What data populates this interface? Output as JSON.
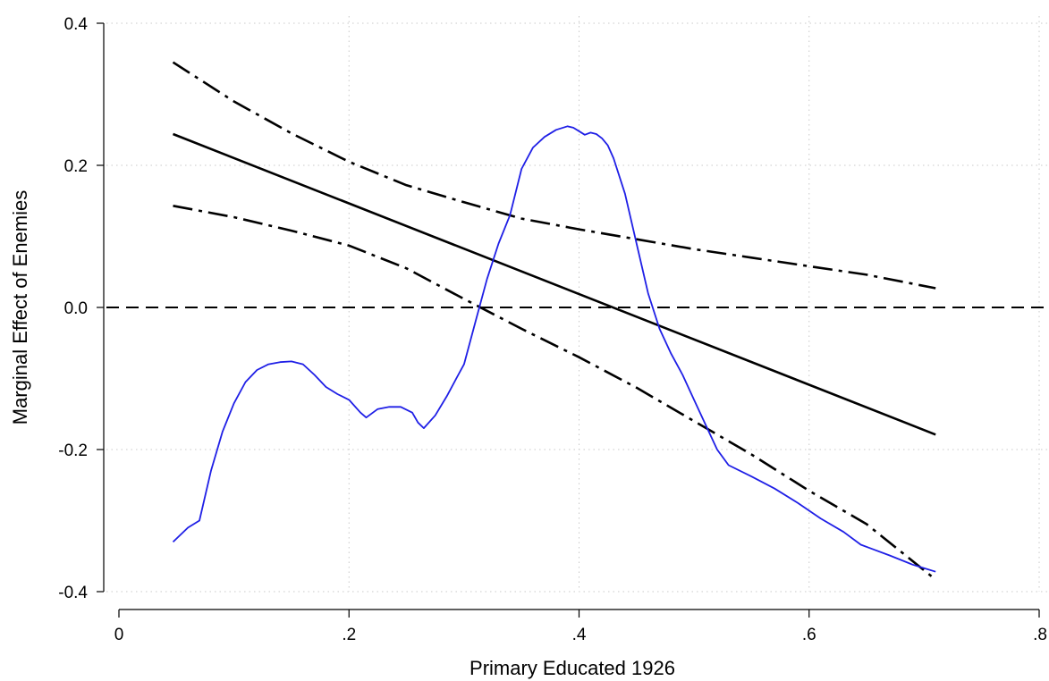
{
  "chart_data": {
    "type": "line",
    "title": "",
    "xlabel": "Primary Educated 1926",
    "ylabel": "Marginal Effect of Enemies",
    "xlim": [
      0,
      0.8
    ],
    "ylim": [
      -0.4,
      0.4
    ],
    "xticks": [
      0,
      0.2,
      0.4,
      0.6,
      0.8
    ],
    "xtick_labels": [
      "0",
      ".2",
      ".4",
      ".6",
      ".8"
    ],
    "yticks": [
      -0.4,
      -0.2,
      0.0,
      0.2,
      0.4
    ],
    "ytick_labels": [
      "-0.4",
      "-0.2",
      "0.0",
      "0.2",
      "0.4"
    ],
    "grid": true,
    "legend": "none",
    "reference_line": {
      "y": 0,
      "style": "dashed",
      "color": "#000000"
    },
    "series": [
      {
        "key": "marginal-effect",
        "style": "solid",
        "color": "#000000",
        "x": [
          0.047,
          0.71
        ],
        "y": [
          0.244,
          -0.179
        ]
      },
      {
        "key": "upper-bound",
        "style": "dashdot",
        "color": "#000000",
        "x": [
          0.047,
          0.1,
          0.15,
          0.2,
          0.25,
          0.3,
          0.35,
          0.4,
          0.45,
          0.5,
          0.55,
          0.6,
          0.65,
          0.71
        ],
        "y": [
          0.345,
          0.29,
          0.245,
          0.205,
          0.172,
          0.148,
          0.125,
          0.11,
          0.096,
          0.082,
          0.07,
          0.058,
          0.046,
          0.027
        ]
      },
      {
        "key": "lower-bound",
        "style": "dashdot",
        "color": "#000000",
        "x": [
          0.047,
          0.1,
          0.15,
          0.2,
          0.25,
          0.3,
          0.35,
          0.4,
          0.45,
          0.5,
          0.55,
          0.6,
          0.65,
          0.71
        ],
        "y": [
          0.143,
          0.127,
          0.108,
          0.087,
          0.055,
          0.012,
          -0.03,
          -0.07,
          -0.113,
          -0.16,
          -0.207,
          -0.258,
          -0.305,
          -0.383
        ]
      },
      {
        "key": "distribution-curve",
        "style": "solid",
        "color": "#1f1fe6",
        "x": [
          0.047,
          0.06,
          0.07,
          0.08,
          0.09,
          0.1,
          0.11,
          0.12,
          0.13,
          0.14,
          0.15,
          0.16,
          0.17,
          0.18,
          0.19,
          0.2,
          0.21,
          0.215,
          0.225,
          0.235,
          0.245,
          0.255,
          0.26,
          0.265,
          0.275,
          0.285,
          0.295,
          0.3,
          0.31,
          0.32,
          0.33,
          0.34,
          0.35,
          0.36,
          0.37,
          0.38,
          0.39,
          0.395,
          0.4,
          0.405,
          0.41,
          0.415,
          0.42,
          0.425,
          0.43,
          0.44,
          0.45,
          0.46,
          0.47,
          0.48,
          0.49,
          0.5,
          0.51,
          0.52,
          0.53,
          0.55,
          0.57,
          0.59,
          0.61,
          0.63,
          0.645,
          0.655,
          0.67,
          0.69,
          0.71
        ],
        "y": [
          -0.33,
          -0.31,
          -0.3,
          -0.23,
          -0.175,
          -0.135,
          -0.105,
          -0.088,
          -0.08,
          -0.077,
          -0.076,
          -0.08,
          -0.095,
          -0.112,
          -0.122,
          -0.13,
          -0.148,
          -0.155,
          -0.143,
          -0.14,
          -0.14,
          -0.148,
          -0.162,
          -0.17,
          -0.152,
          -0.125,
          -0.095,
          -0.08,
          -0.02,
          0.04,
          0.09,
          0.13,
          0.195,
          0.225,
          0.24,
          0.25,
          0.255,
          0.253,
          0.248,
          0.243,
          0.246,
          0.244,
          0.238,
          0.228,
          0.21,
          0.16,
          0.09,
          0.02,
          -0.03,
          -0.065,
          -0.095,
          -0.13,
          -0.165,
          -0.2,
          -0.222,
          -0.238,
          -0.255,
          -0.275,
          -0.297,
          -0.316,
          -0.334,
          -0.34,
          -0.349,
          -0.362,
          -0.372
        ]
      }
    ]
  }
}
